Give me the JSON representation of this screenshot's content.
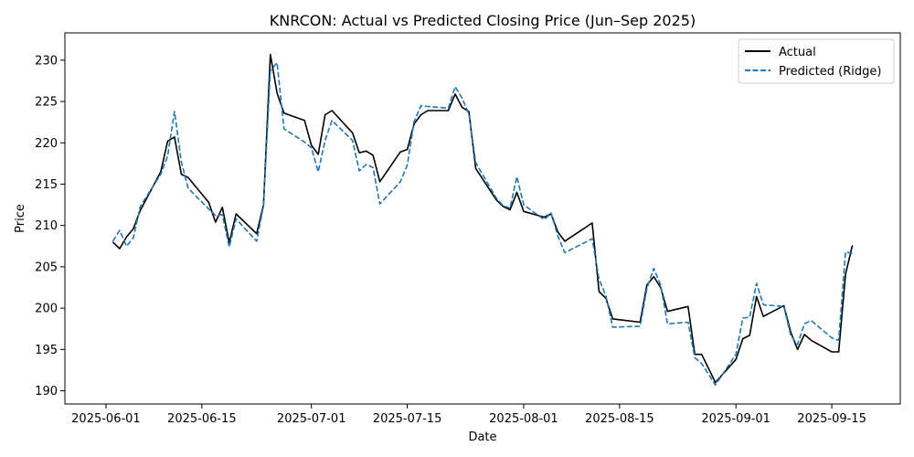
{
  "chart_data": {
    "type": "line",
    "title": "KNRCON: Actual vs Predicted Closing Price (Jun–Sep 2025)",
    "xlabel": "Date",
    "ylabel": "Price",
    "x_range": [
      "2025-05-26",
      "2025-09-25"
    ],
    "ylim": [
      188.4,
      233.3
    ],
    "x_ticks": [
      "2025-06-01",
      "2025-06-15",
      "2025-07-01",
      "2025-07-15",
      "2025-08-01",
      "2025-08-15",
      "2025-09-01",
      "2025-09-15"
    ],
    "y_ticks": [
      190,
      195,
      200,
      205,
      210,
      215,
      220,
      225,
      230
    ],
    "legend_position": "top-right",
    "grid": false,
    "series": [
      {
        "name": "Actual",
        "color": "#000000",
        "style": "solid",
        "points": [
          [
            "2025-06-02",
            208.0
          ],
          [
            "2025-06-03",
            207.2
          ],
          [
            "2025-06-04",
            208.6
          ],
          [
            "2025-06-05",
            209.6
          ],
          [
            "2025-06-06",
            211.8
          ],
          [
            "2025-06-09",
            216.5
          ],
          [
            "2025-06-10",
            220.2
          ],
          [
            "2025-06-11",
            220.7
          ],
          [
            "2025-06-12",
            216.2
          ],
          [
            "2025-06-13",
            215.8
          ],
          [
            "2025-06-16",
            212.8
          ],
          [
            "2025-06-17",
            210.4
          ],
          [
            "2025-06-18",
            212.2
          ],
          [
            "2025-06-19",
            207.9
          ],
          [
            "2025-06-20",
            211.4
          ],
          [
            "2025-06-23",
            209.0
          ],
          [
            "2025-06-24",
            212.5
          ],
          [
            "2025-06-25",
            230.7
          ],
          [
            "2025-06-26",
            226.0
          ],
          [
            "2025-06-27",
            223.6
          ],
          [
            "2025-06-30",
            222.7
          ],
          [
            "2025-07-01",
            219.7
          ],
          [
            "2025-07-02",
            218.6
          ],
          [
            "2025-07-03",
            223.4
          ],
          [
            "2025-07-04",
            223.9
          ],
          [
            "2025-07-07",
            221.2
          ],
          [
            "2025-07-08",
            218.8
          ],
          [
            "2025-07-09",
            219.0
          ],
          [
            "2025-07-10",
            218.5
          ],
          [
            "2025-07-11",
            215.3
          ],
          [
            "2025-07-14",
            218.9
          ],
          [
            "2025-07-15",
            219.2
          ],
          [
            "2025-07-16",
            222.3
          ],
          [
            "2025-07-17",
            223.4
          ],
          [
            "2025-07-18",
            223.9
          ],
          [
            "2025-07-21",
            223.9
          ],
          [
            "2025-07-22",
            225.9
          ],
          [
            "2025-07-23",
            224.3
          ],
          [
            "2025-07-24",
            223.8
          ],
          [
            "2025-07-25",
            216.9
          ],
          [
            "2025-07-28",
            213.1
          ],
          [
            "2025-07-29",
            212.3
          ],
          [
            "2025-07-30",
            211.9
          ],
          [
            "2025-07-31",
            214.0
          ],
          [
            "2025-08-01",
            211.7
          ],
          [
            "2025-08-04",
            211.0
          ],
          [
            "2025-08-05",
            211.4
          ],
          [
            "2025-08-06",
            209.2
          ],
          [
            "2025-08-07",
            208.1
          ],
          [
            "2025-08-11",
            210.3
          ],
          [
            "2025-08-12",
            202.0
          ],
          [
            "2025-08-13",
            201.2
          ],
          [
            "2025-08-14",
            198.7
          ],
          [
            "2025-08-18",
            198.3
          ],
          [
            "2025-08-19",
            202.8
          ],
          [
            "2025-08-20",
            203.8
          ],
          [
            "2025-08-21",
            202.5
          ],
          [
            "2025-08-22",
            199.6
          ],
          [
            "2025-08-25",
            200.2
          ],
          [
            "2025-08-26",
            194.4
          ],
          [
            "2025-08-27",
            194.4
          ],
          [
            "2025-08-29",
            191.0
          ],
          [
            "2025-09-01",
            193.8
          ],
          [
            "2025-09-02",
            196.3
          ],
          [
            "2025-09-03",
            196.7
          ],
          [
            "2025-09-04",
            201.4
          ],
          [
            "2025-09-05",
            199.0
          ],
          [
            "2025-09-08",
            200.3
          ],
          [
            "2025-09-09",
            197.1
          ],
          [
            "2025-09-10",
            195.0
          ],
          [
            "2025-09-11",
            196.8
          ],
          [
            "2025-09-12",
            196.1
          ],
          [
            "2025-09-15",
            194.7
          ],
          [
            "2025-09-16",
            194.7
          ],
          [
            "2025-09-17",
            204.1
          ],
          [
            "2025-09-18",
            207.6
          ]
        ]
      },
      {
        "name": "Predicted (Ridge)",
        "color": "#1f77b4",
        "style": "dashed",
        "points": [
          [
            "2025-06-02",
            208.1
          ],
          [
            "2025-06-03",
            209.4
          ],
          [
            "2025-06-04",
            207.5
          ],
          [
            "2025-06-05",
            208.5
          ],
          [
            "2025-06-06",
            212.3
          ],
          [
            "2025-06-09",
            216.2
          ],
          [
            "2025-06-10",
            218.4
          ],
          [
            "2025-06-11",
            223.8
          ],
          [
            "2025-06-12",
            217.7
          ],
          [
            "2025-06-13",
            214.5
          ],
          [
            "2025-06-16",
            212.0
          ],
          [
            "2025-06-17",
            211.2
          ],
          [
            "2025-06-18",
            211.3
          ],
          [
            "2025-06-19",
            207.4
          ],
          [
            "2025-06-20",
            210.8
          ],
          [
            "2025-06-23",
            208.1
          ],
          [
            "2025-06-24",
            212.4
          ],
          [
            "2025-06-25",
            228.7
          ],
          [
            "2025-06-26",
            229.7
          ],
          [
            "2025-06-27",
            221.7
          ],
          [
            "2025-06-30",
            220.1
          ],
          [
            "2025-07-01",
            219.4
          ],
          [
            "2025-07-02",
            216.5
          ],
          [
            "2025-07-03",
            220.3
          ],
          [
            "2025-07-04",
            222.7
          ],
          [
            "2025-07-07",
            220.3
          ],
          [
            "2025-07-08",
            216.6
          ],
          [
            "2025-07-09",
            217.4
          ],
          [
            "2025-07-10",
            217.0
          ],
          [
            "2025-07-11",
            212.6
          ],
          [
            "2025-07-14",
            215.3
          ],
          [
            "2025-07-15",
            217.3
          ],
          [
            "2025-07-16",
            222.6
          ],
          [
            "2025-07-17",
            224.5
          ],
          [
            "2025-07-18",
            224.4
          ],
          [
            "2025-07-21",
            224.2
          ],
          [
            "2025-07-22",
            226.8
          ],
          [
            "2025-07-23",
            225.4
          ],
          [
            "2025-07-24",
            223.5
          ],
          [
            "2025-07-25",
            217.6
          ],
          [
            "2025-07-28",
            213.3
          ],
          [
            "2025-07-29",
            212.4
          ],
          [
            "2025-07-30",
            212.1
          ],
          [
            "2025-07-31",
            215.9
          ],
          [
            "2025-08-01",
            212.5
          ],
          [
            "2025-08-04",
            210.7
          ],
          [
            "2025-08-05",
            211.5
          ],
          [
            "2025-08-06",
            208.7
          ],
          [
            "2025-08-07",
            206.7
          ],
          [
            "2025-08-11",
            208.4
          ],
          [
            "2025-08-12",
            203.5
          ],
          [
            "2025-08-13",
            201.5
          ],
          [
            "2025-08-14",
            197.7
          ],
          [
            "2025-08-18",
            197.8
          ],
          [
            "2025-08-19",
            202.4
          ],
          [
            "2025-08-20",
            204.8
          ],
          [
            "2025-08-21",
            202.8
          ],
          [
            "2025-08-22",
            198.1
          ],
          [
            "2025-08-25",
            198.3
          ],
          [
            "2025-08-26",
            194.0
          ],
          [
            "2025-08-27",
            193.3
          ],
          [
            "2025-08-29",
            190.7
          ],
          [
            "2025-09-01",
            194.4
          ],
          [
            "2025-09-02",
            198.8
          ],
          [
            "2025-09-03",
            198.9
          ],
          [
            "2025-09-04",
            203.0
          ],
          [
            "2025-09-05",
            200.4
          ],
          [
            "2025-09-08",
            200.2
          ],
          [
            "2025-09-09",
            196.7
          ],
          [
            "2025-09-10",
            195.6
          ],
          [
            "2025-09-11",
            198.1
          ],
          [
            "2025-09-12",
            198.5
          ],
          [
            "2025-09-15",
            196.4
          ],
          [
            "2025-09-16",
            196.1
          ],
          [
            "2025-09-17",
            206.8
          ],
          [
            "2025-09-18",
            206.6
          ]
        ]
      }
    ]
  }
}
